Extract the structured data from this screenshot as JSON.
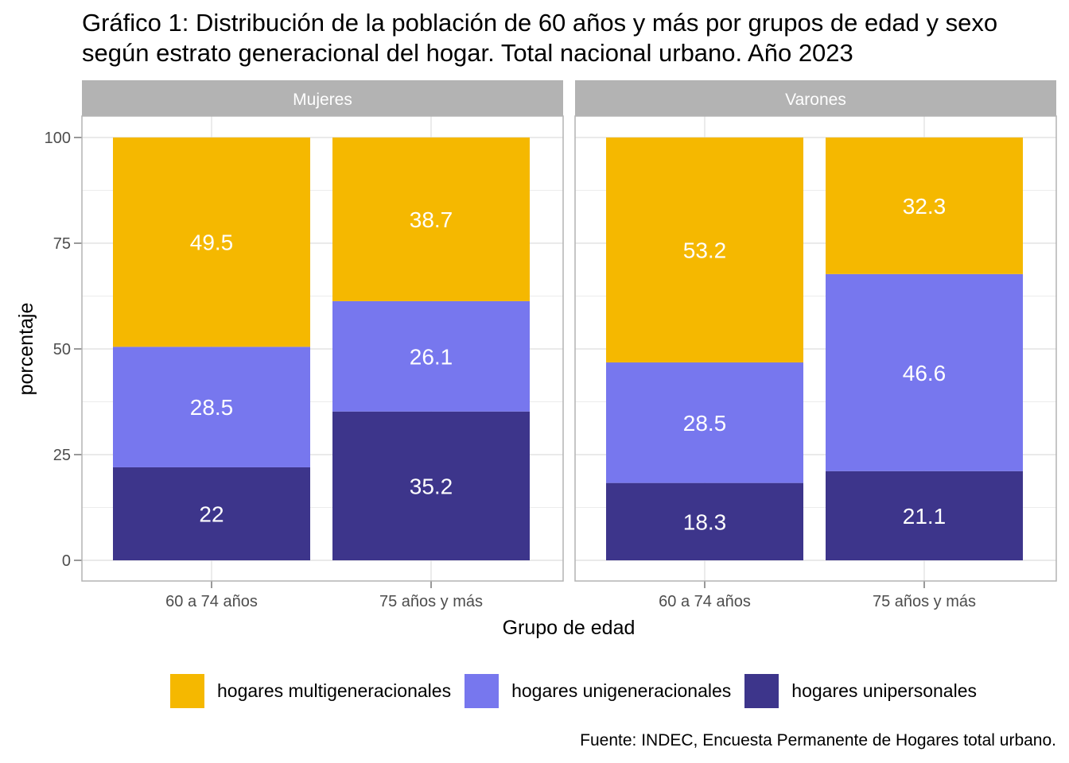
{
  "title": {
    "line1": "Gráfico 1: Distribución de la población de 60 años y más por grupos de edad y sexo",
    "line2": "según estrato generacional del hogar. Total nacional urbano. Año 2023"
  },
  "source": "Fuente: INDEC, Encuesta Permanente de Hogares total urbano.",
  "chart_data": {
    "type": "bar",
    "stacked": true,
    "title": "Gráfico 1: Distribución de la población de 60 años y más por grupos de edad y sexo según estrato generacional del hogar. Total nacional urbano. Año 2023",
    "xlabel": "Grupo de edad",
    "ylabel": "porcentaje",
    "ylim": [
      0,
      100
    ],
    "yticks": [
      0,
      25,
      50,
      75,
      100
    ],
    "grid": true,
    "legend_position": "bottom",
    "categories": [
      "60 a 74 años",
      "75 años y más"
    ],
    "series_order_bottom_to_top": [
      "hogares unipersonales",
      "hogares unigeneracionales",
      "hogares multigeneracionales"
    ],
    "legend_order": [
      "hogares multigeneracionales",
      "hogares unigeneracionales",
      "hogares unipersonales"
    ],
    "colors": {
      "hogares multigeneracionales": "#F5B800",
      "hogares unigeneracionales": "#7777EE",
      "hogares unipersonales": "#3D358B"
    },
    "panels": [
      {
        "name": "Mujeres",
        "series": [
          {
            "name": "hogares unipersonales",
            "values": [
              22,
              35.2
            ]
          },
          {
            "name": "hogares unigeneracionales",
            "values": [
              28.5,
              26.1
            ]
          },
          {
            "name": "hogares multigeneracionales",
            "values": [
              49.5,
              38.7
            ]
          }
        ]
      },
      {
        "name": "Varones",
        "series": [
          {
            "name": "hogares unipersonales",
            "values": [
              18.3,
              21.1
            ]
          },
          {
            "name": "hogares unigeneracionales",
            "values": [
              28.5,
              46.6
            ]
          },
          {
            "name": "hogares multigeneracionales",
            "values": [
              53.2,
              32.3
            ]
          }
        ]
      }
    ]
  }
}
